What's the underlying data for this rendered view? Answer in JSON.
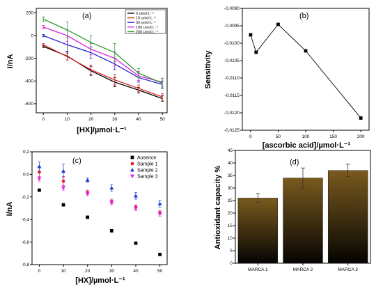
{
  "chart_data": [
    {
      "panel_label": "(a)",
      "type": "line",
      "xlabel": "[HX]/µmol·L⁻¹",
      "ylabel": "I/nA",
      "xlim": [
        -3,
        52
      ],
      "ylim": [
        -680,
        240
      ],
      "xticks": [
        "0",
        "10",
        "20",
        "30",
        "40",
        "50"
      ],
      "yticks": [
        "200",
        "0",
        "-200",
        "-400",
        "-600"
      ],
      "x": [
        0,
        10,
        20,
        30,
        40,
        50
      ],
      "legend": "top-right",
      "series": [
        {
          "name": "0 umol L⁻¹",
          "color": "#000000",
          "values": [
            -95,
            -180,
            -310,
            -410,
            -480,
            -555
          ],
          "err": [
            10,
            35,
            40,
            40,
            25,
            25
          ]
        },
        {
          "name": "10 umol L⁻¹",
          "color": "#d62728",
          "values": [
            -80,
            -185,
            -300,
            -390,
            -465,
            -540
          ],
          "err": [
            10,
            30,
            40,
            45,
            30,
            30
          ]
        },
        {
          "name": "50 umol L⁻¹",
          "color": "#1f1fd0",
          "values": [
            0,
            -80,
            -150,
            -250,
            -370,
            -430
          ],
          "err": [
            10,
            60,
            50,
            50,
            40,
            30
          ]
        },
        {
          "name": "100 umol L⁻¹",
          "color": "#e020e0",
          "values": [
            75,
            0,
            -120,
            -200,
            -355,
            -410
          ],
          "err": [
            15,
            50,
            50,
            60,
            40,
            35
          ]
        },
        {
          "name": "200 umol L⁻¹",
          "color": "#2a9d2a",
          "values": [
            145,
            50,
            -60,
            -150,
            -330,
            -420
          ],
          "err": [
            20,
            70,
            60,
            80,
            40,
            45
          ]
        }
      ]
    },
    {
      "panel_label": "(b)",
      "type": "line",
      "xlabel": "[ascorbic acid]/µmol·L⁻¹",
      "ylabel": "Sensitivity",
      "xlim": [
        -15,
        215
      ],
      "ylim": [
        -0.0125,
        -0.009
      ],
      "xticks": [
        "0",
        "50",
        "100",
        "150",
        "200"
      ],
      "yticks": [
        "-0,0090",
        "-0,0095",
        "-0,0100",
        "-0,0105",
        "-0,0110",
        "-0,0115",
        "-0,0120",
        "-0,0125"
      ],
      "x": [
        0,
        10,
        50,
        100,
        200
      ],
      "series": [
        {
          "color": "#000000",
          "values": [
            -0.00976,
            -0.01026,
            -0.00946,
            -0.01022,
            -0.01215
          ]
        }
      ]
    },
    {
      "panel_label": "(c)",
      "type": "scatter",
      "xlabel": "[HX]/µmol·L⁻¹",
      "ylabel": "I/nA",
      "xlim": [
        -3,
        53
      ],
      "ylim": [
        -0.8,
        0.2
      ],
      "xticks": [
        "0",
        "10",
        "20",
        "30",
        "40",
        "50"
      ],
      "yticks": [
        "0,2",
        "0,0",
        "-0,2",
        "-0,4",
        "-0,6",
        "-0,8"
      ],
      "x": [
        0,
        10,
        20,
        30,
        40,
        50
      ],
      "legend": "top-right",
      "series": [
        {
          "name": "Ausence",
          "marker": "square",
          "color": "#000000",
          "values": [
            -0.14,
            -0.27,
            -0.38,
            -0.5,
            -0.61,
            -0.71
          ],
          "err": [
            0,
            0,
            0,
            0,
            0,
            0
          ]
        },
        {
          "name": "Sample 1",
          "marker": "circle",
          "color": "#e8202a",
          "values": [
            0.02,
            -0.06,
            -0.16,
            -0.24,
            -0.29,
            -0.34
          ],
          "err": [
            0.04,
            0.04,
            0.02,
            0.02,
            0.02,
            0.02
          ]
        },
        {
          "name": "Sample 2",
          "marker": "triangle-up",
          "color": "#1f3fd0",
          "values": [
            0.07,
            0.03,
            -0.05,
            -0.12,
            -0.19,
            -0.26
          ],
          "err": [
            0.04,
            0.06,
            0.02,
            0.03,
            0.03,
            0.03
          ]
        },
        {
          "name": "Sample 3",
          "marker": "triangle-down",
          "color": "#e020e0",
          "values": [
            -0.04,
            -0.12,
            -0.17,
            -0.25,
            -0.3,
            -0.35
          ],
          "err": [
            0.02,
            0.02,
            0.02,
            0.02,
            0.02,
            0.02
          ]
        }
      ]
    },
    {
      "panel_label": "(d)",
      "type": "bar",
      "ylabel": "Antioxidant capacity %",
      "ylim": [
        0,
        45
      ],
      "yticks": [
        "0",
        "5",
        "10",
        "15",
        "20",
        "25",
        "30",
        "35",
        "40",
        "45"
      ],
      "categories": [
        "MARCA 1",
        "MARCA 2",
        "MARCA 3"
      ],
      "values": [
        26,
        34,
        37
      ],
      "err": [
        1.8,
        4.0,
        2.5
      ],
      "bar_color_top": "#7a5a1e",
      "bar_color_bottom": "#050402"
    }
  ]
}
